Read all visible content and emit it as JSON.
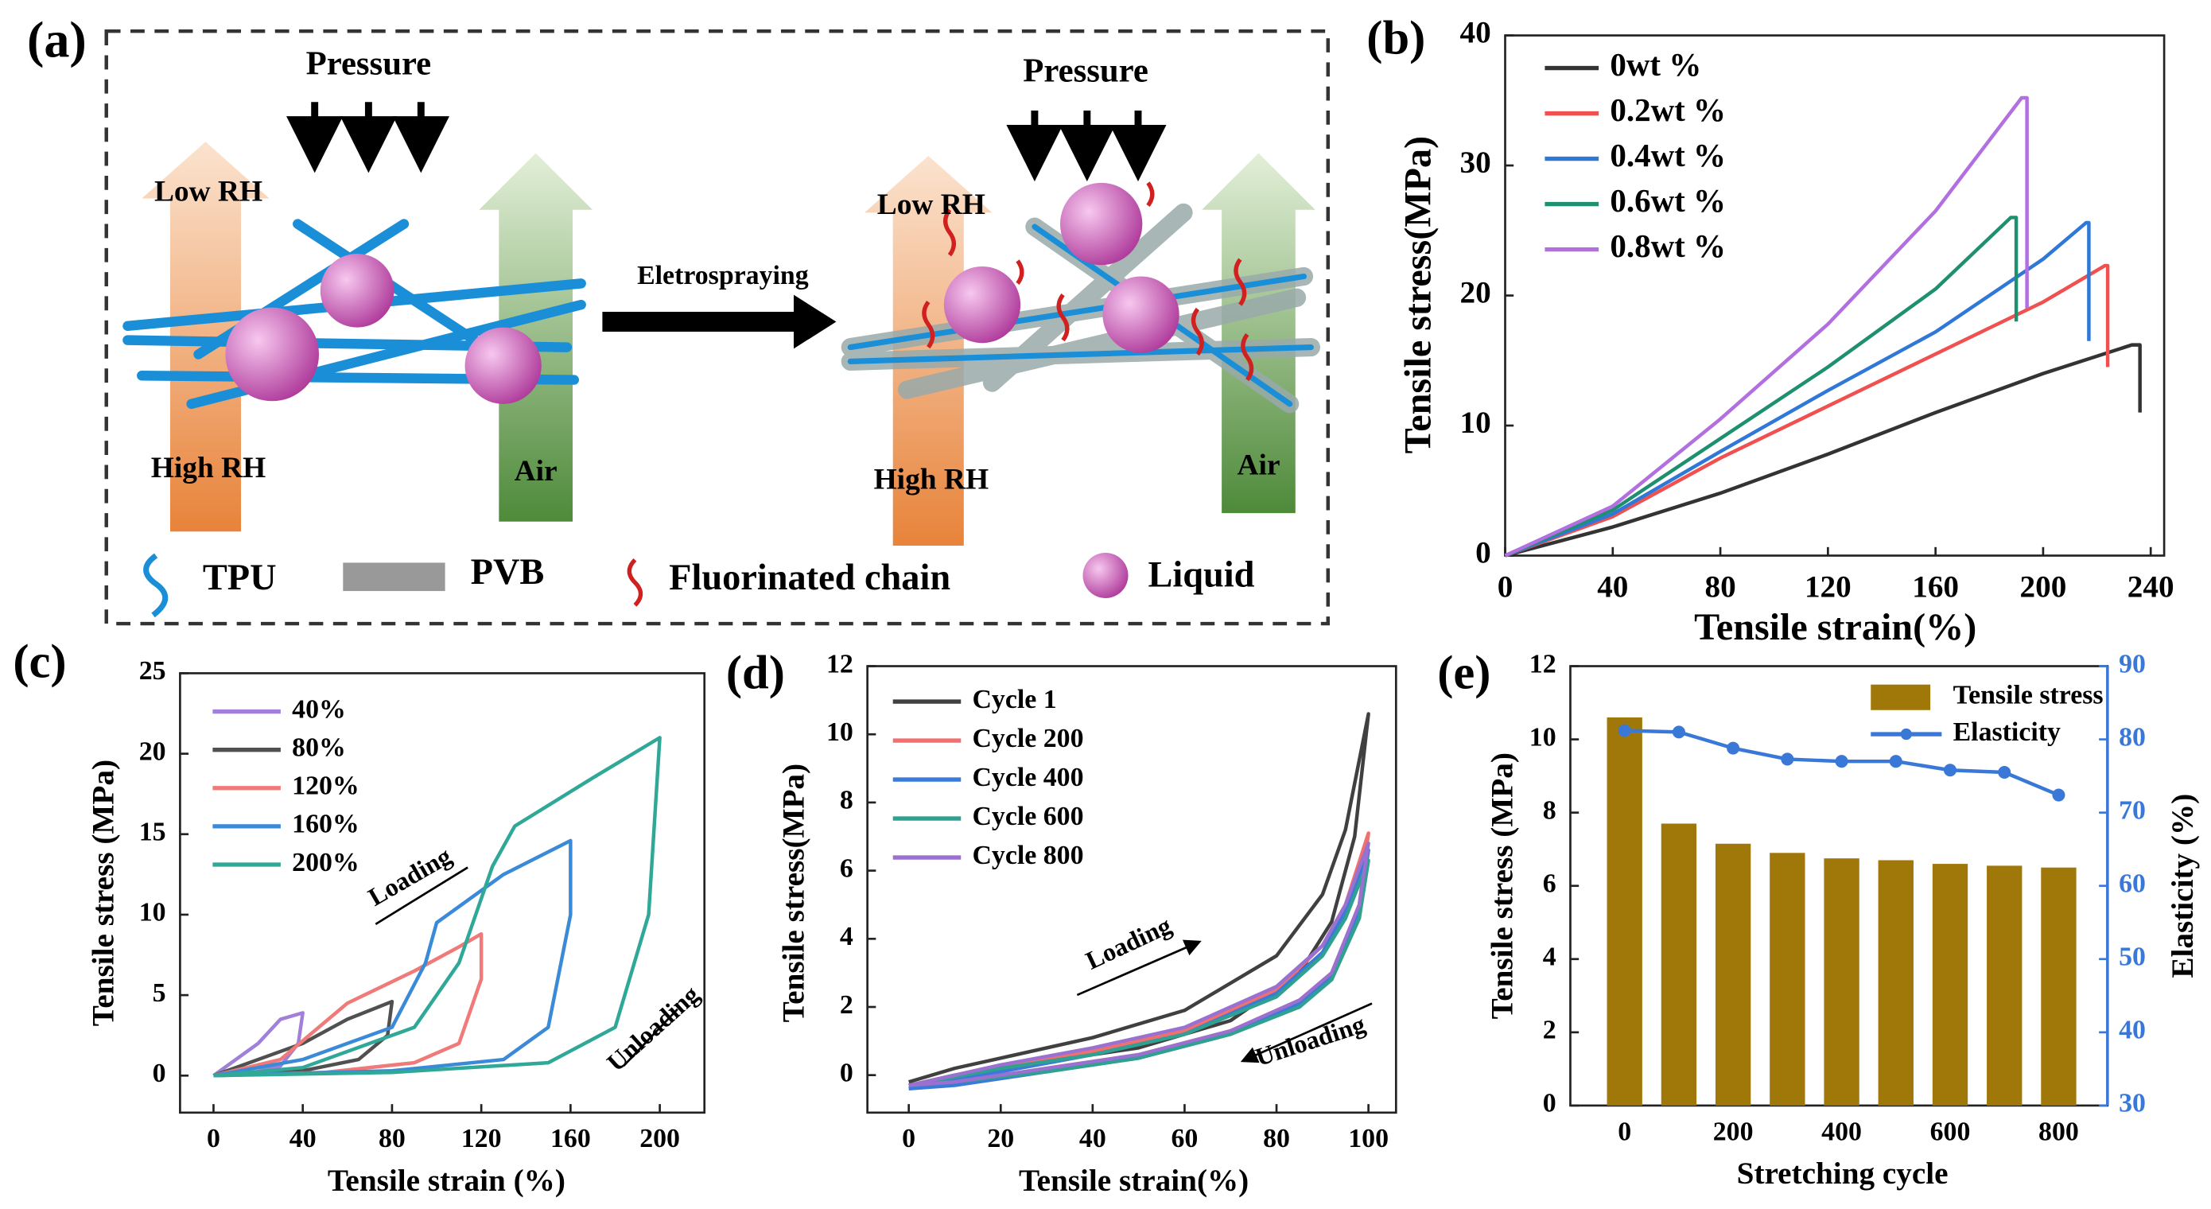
{
  "diagram": {
    "label": "(a)",
    "pressure_left": "Pressure",
    "pressure_right": "Pressure",
    "low_rh_left": "Low RH",
    "low_rh_right": "Low RH",
    "high_rh_left": "High RH",
    "high_rh_right": "High RH",
    "air_left": "Air",
    "air_right": "Air",
    "process": "Eletrospraying",
    "legend": [
      "TPU",
      "PVB",
      "Fluorinated chain",
      "Liquid"
    ]
  },
  "chart_data": [
    {
      "type": "line",
      "label": "(b)",
      "x_label": "Tensile strain(%)",
      "y_label": "Tensile stress(MPa)",
      "xlim": [
        0,
        245
      ],
      "ylim": [
        0,
        40
      ],
      "xticks": [
        0,
        40,
        80,
        120,
        160,
        200,
        240
      ],
      "yticks": [
        0,
        10,
        20,
        30,
        40
      ],
      "series": [
        {
          "name": "0wt %",
          "color": "#333333",
          "x": [
            0,
            40,
            80,
            120,
            160,
            200,
            233,
            236,
            236
          ],
          "values": [
            0,
            2.2,
            4.8,
            7.8,
            11,
            14,
            16.2,
            16.2,
            11
          ]
        },
        {
          "name": "0.2wt %",
          "color": "#f05050",
          "x": [
            0,
            40,
            80,
            120,
            160,
            200,
            223,
            224,
            224
          ],
          "values": [
            0,
            3,
            7.5,
            11.5,
            15.5,
            19.5,
            22.3,
            22.3,
            14.5
          ]
        },
        {
          "name": "0.4wt %",
          "color": "#2f78d8",
          "x": [
            0,
            40,
            80,
            120,
            160,
            200,
            216,
            217,
            217
          ],
          "values": [
            0,
            3.2,
            8,
            12.7,
            17.2,
            22.8,
            25.6,
            25.6,
            16.5
          ]
        },
        {
          "name": "0.6wt %",
          "color": "#1e9070",
          "x": [
            0,
            40,
            80,
            120,
            160,
            188,
            190,
            190
          ],
          "values": [
            0,
            3.5,
            9,
            14.5,
            20.5,
            26,
            26,
            18
          ]
        },
        {
          "name": "0.8wt %",
          "color": "#b26fe0",
          "x": [
            0,
            40,
            80,
            120,
            160,
            192,
            194,
            194
          ],
          "values": [
            0,
            3.8,
            10.5,
            17.8,
            26.5,
            35.2,
            35.2,
            19
          ]
        }
      ]
    },
    {
      "type": "line",
      "label": "(c)",
      "x_label": "Tensile strain (%)",
      "y_label": "Tensile stress (MPa)",
      "xlim": [
        -15,
        220
      ],
      "ylim": [
        -2.3,
        25
      ],
      "xticks": [
        0,
        40,
        80,
        120,
        160,
        200
      ],
      "yticks": [
        0,
        5,
        10,
        15,
        20,
        25
      ],
      "annotations": [
        "Loading",
        "Unloading"
      ],
      "series": [
        {
          "name": "40%",
          "color": "#a080d8",
          "x": [
            0,
            10,
            20,
            30,
            40,
            38,
            30,
            15,
            0
          ],
          "values": [
            0,
            1,
            2,
            3.5,
            3.9,
            2,
            0.6,
            0.1,
            0
          ]
        },
        {
          "name": "80%",
          "color": "#505050",
          "x": [
            0,
            20,
            40,
            60,
            80,
            78,
            65,
            40,
            0
          ],
          "values": [
            0,
            1,
            2,
            3.5,
            4.6,
            2.5,
            1,
            0.3,
            0
          ]
        },
        {
          "name": "120%",
          "color": "#f07a78",
          "x": [
            0,
            30,
            60,
            90,
            110,
            120,
            120,
            110,
            90,
            50,
            0
          ],
          "values": [
            0,
            1,
            4.5,
            6.5,
            8,
            8.8,
            6,
            2,
            0.8,
            0.2,
            0
          ]
        },
        {
          "name": "160%",
          "color": "#3a8ad8",
          "x": [
            0,
            40,
            80,
            95,
            100,
            130,
            160,
            160,
            150,
            130,
            80,
            0
          ],
          "values": [
            0,
            1,
            3,
            7,
            9.5,
            12.5,
            14.6,
            10,
            3,
            1,
            0.3,
            0
          ]
        },
        {
          "name": "200%",
          "color": "#30a898",
          "x": [
            0,
            40,
            90,
            110,
            125,
            135,
            170,
            200,
            195,
            180,
            150,
            80,
            0
          ],
          "values": [
            0,
            0.5,
            3,
            7,
            13,
            15.5,
            18.5,
            21,
            10,
            3,
            0.8,
            0.2,
            0
          ]
        }
      ]
    },
    {
      "type": "line",
      "label": "(d)",
      "x_label": "Tensile strain(%)",
      "y_label": "Tensile stress(MPa)",
      "xlim": [
        -9,
        106
      ],
      "ylim": [
        -1.1,
        12
      ],
      "xticks": [
        0,
        20,
        40,
        60,
        80,
        100
      ],
      "yticks": [
        0,
        2,
        4,
        6,
        8,
        10,
        12
      ],
      "annotations": [
        "Loading",
        "Unloading"
      ],
      "series": [
        {
          "name": "Cycle 1",
          "color": "#404040",
          "x": [
            0,
            10,
            20,
            40,
            60,
            80,
            90,
            95,
            100,
            97,
            92,
            85,
            70,
            50,
            30,
            10,
            0
          ],
          "values": [
            -0.2,
            0.2,
            0.5,
            1.1,
            1.9,
            3.5,
            5.3,
            7.2,
            10.6,
            7,
            4.5,
            3,
            1.6,
            0.8,
            0.4,
            0,
            -0.3
          ]
        },
        {
          "name": "Cycle 200",
          "color": "#f07070",
          "x": [
            0,
            20,
            40,
            60,
            80,
            90,
            95,
            100,
            98,
            92,
            85,
            70,
            50,
            30,
            10,
            0
          ],
          "values": [
            -0.3,
            0.2,
            0.7,
            1.3,
            2.5,
            3.8,
            5,
            7.1,
            5,
            3,
            2.2,
            1.3,
            0.6,
            0.2,
            -0.2,
            -0.3
          ]
        },
        {
          "name": "Cycle 400",
          "color": "#3a7ad8",
          "x": [
            0,
            20,
            40,
            60,
            80,
            90,
            95,
            100,
            98,
            92,
            85,
            70,
            50,
            30,
            10,
            0
          ],
          "values": [
            -0.4,
            0.1,
            0.6,
            1.2,
            2.4,
            3.6,
            4.8,
            6.6,
            4.8,
            2.9,
            2.1,
            1.2,
            0.5,
            0.1,
            -0.3,
            -0.4
          ]
        },
        {
          "name": "Cycle 600",
          "color": "#30a090",
          "x": [
            0,
            20,
            40,
            60,
            80,
            90,
            95,
            100,
            98,
            92,
            85,
            70,
            50,
            30,
            10,
            0
          ],
          "values": [
            -0.3,
            0.2,
            0.6,
            1.2,
            2.3,
            3.5,
            4.6,
            6.3,
            4.6,
            2.8,
            2,
            1.2,
            0.5,
            0.1,
            -0.2,
            -0.3
          ]
        },
        {
          "name": "Cycle 800",
          "color": "#9a70d0",
          "x": [
            0,
            20,
            40,
            60,
            80,
            90,
            95,
            100,
            98,
            92,
            85,
            70,
            50,
            30,
            10,
            0
          ],
          "values": [
            -0.3,
            0.3,
            0.8,
            1.4,
            2.6,
            3.8,
            5,
            6.8,
            5,
            3,
            2.2,
            1.3,
            0.6,
            0.2,
            -0.2,
            -0.3
          ]
        }
      ]
    },
    {
      "type": "bar",
      "label": "(e)",
      "x_label": "Stretching cycle",
      "y_label": "Tensile stress (MPa)",
      "y2_label": "Elasticity (%)",
      "xlim": [
        -100,
        890
      ],
      "ylim": [
        0,
        12
      ],
      "y2lim": [
        30,
        90
      ],
      "xticks": [
        0,
        200,
        400,
        600,
        800
      ],
      "yticks": [
        0,
        2,
        4,
        6,
        8,
        10,
        12
      ],
      "y2ticks": [
        30,
        40,
        50,
        60,
        70,
        80,
        90
      ],
      "x": [
        0,
        100,
        200,
        300,
        400,
        500,
        600,
        700,
        800
      ],
      "series": [
        {
          "name": "Tensile stress",
          "color": "#a0780a",
          "values": [
            10.6,
            7.7,
            7.15,
            6.9,
            6.75,
            6.7,
            6.6,
            6.55,
            6.5
          ]
        },
        {
          "name": "Elasticity",
          "color": "#3a78d8",
          "type": "line",
          "axis": "y2",
          "values": [
            81.2,
            81,
            78.8,
            77.3,
            77,
            77,
            75.8,
            75.5,
            72.4
          ]
        }
      ]
    }
  ]
}
